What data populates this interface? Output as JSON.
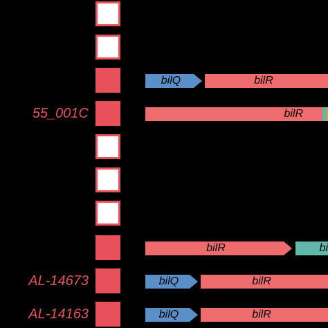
{
  "colors": {
    "background": "#000000",
    "present": "#e8505b",
    "bilQ": "#5b8fc7",
    "bilR": "#ee6b6e",
    "teal": "#5fb8aa",
    "orange": "#f29a2e"
  },
  "rows": [
    {
      "strain": "",
      "present": false
    },
    {
      "strain": "",
      "present": false
    },
    {
      "strain": "",
      "present": true,
      "genes": [
        "bilQ",
        "bilR"
      ]
    },
    {
      "strain": "55_001C",
      "present": true,
      "genes": [
        "bilR"
      ]
    },
    {
      "strain": "",
      "present": false
    },
    {
      "strain": "",
      "present": false
    },
    {
      "strain": "",
      "present": false
    },
    {
      "strain": "",
      "present": true,
      "genes": [
        "bilR",
        "bi"
      ]
    },
    {
      "strain": "AL-14673",
      "present": true,
      "genes": [
        "bilQ",
        "bilR"
      ]
    },
    {
      "strain": "AL-14163",
      "present": true,
      "genes": [
        "bilQ",
        "bilR"
      ]
    }
  ]
}
